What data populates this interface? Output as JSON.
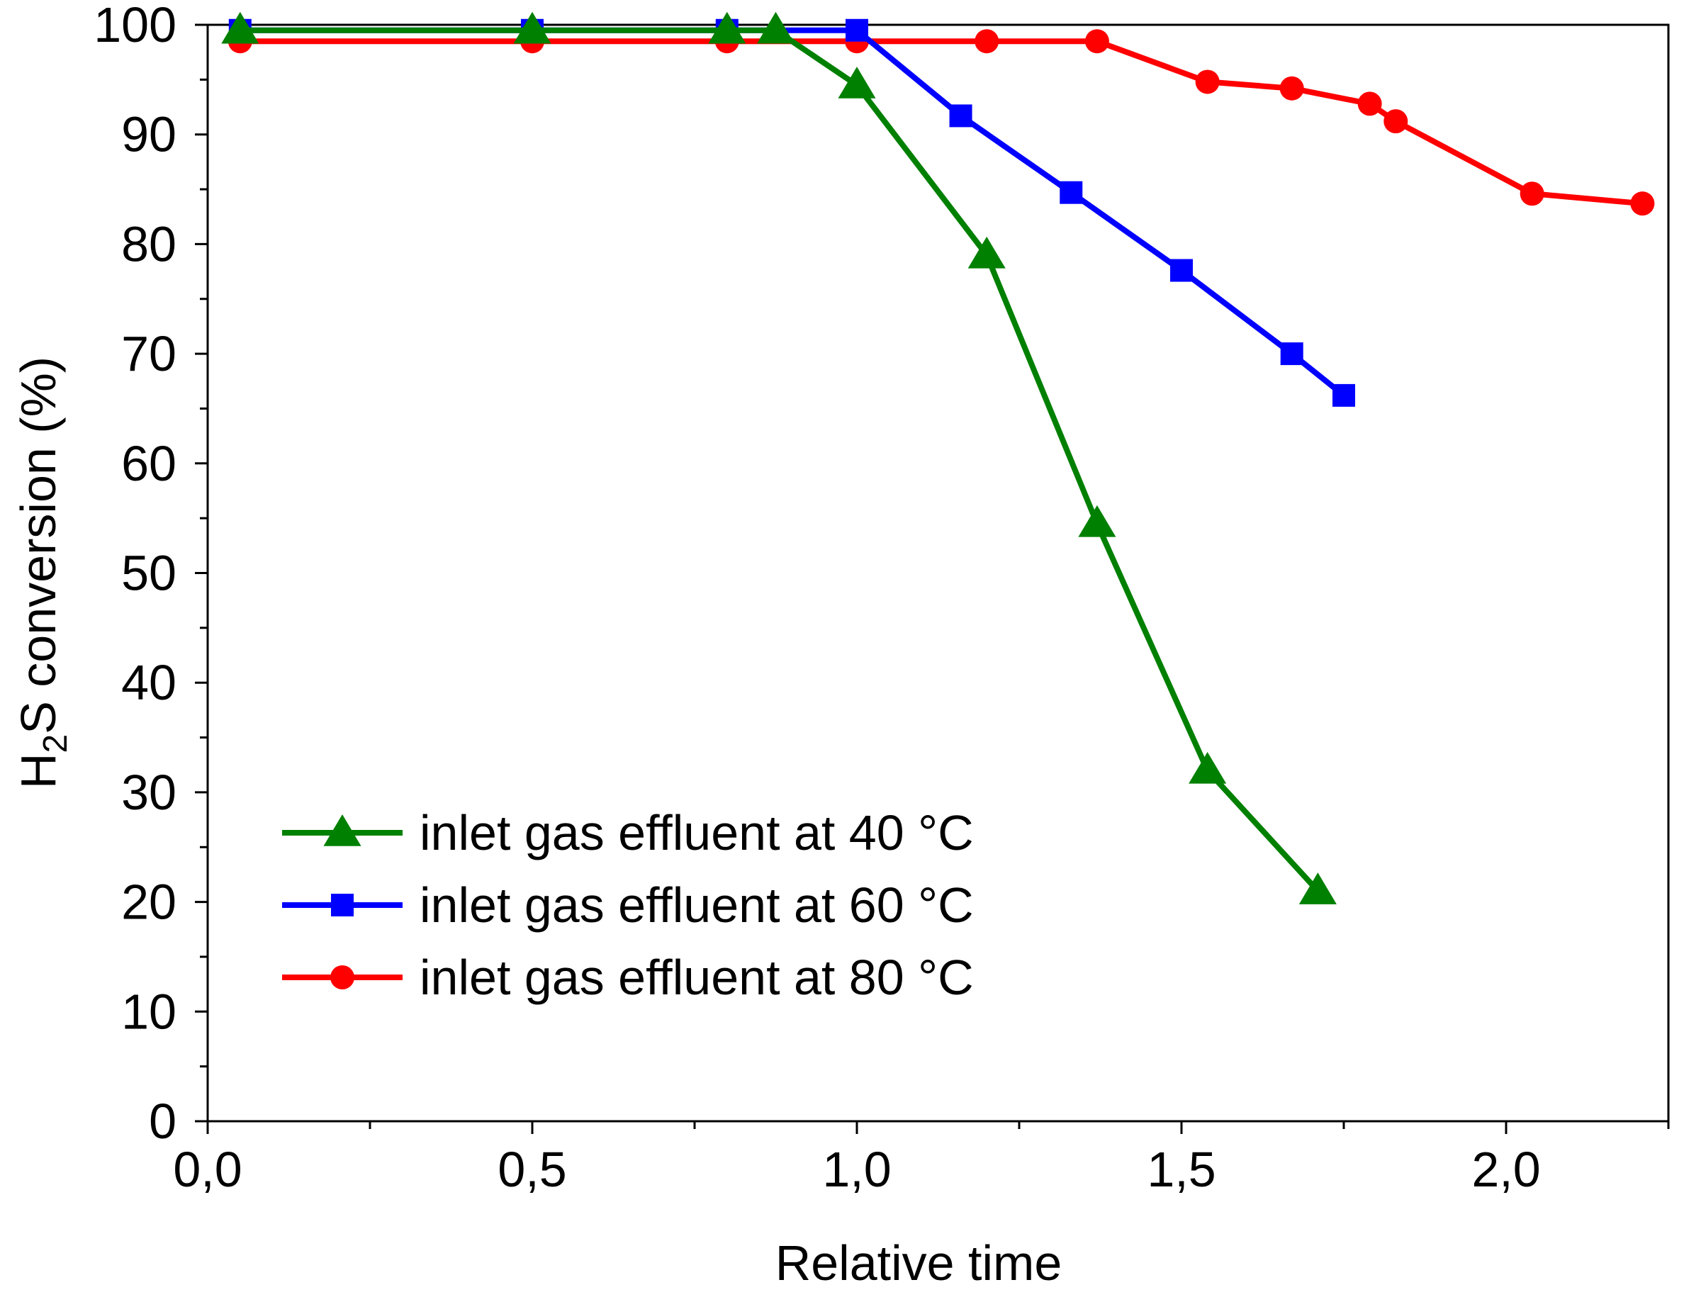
{
  "chart_data": {
    "type": "line",
    "title": "",
    "xlabel": "Relative time",
    "ylabel": {
      "prefix": "H",
      "subscript": "2",
      "suffix": "S conversion (%)"
    },
    "xlim": [
      0.0,
      2.25
    ],
    "ylim": [
      0,
      100
    ],
    "x_ticks": [
      0.0,
      0.5,
      1.0,
      1.5,
      2.0
    ],
    "x_tick_labels": [
      "0,0",
      "0,5",
      "1,0",
      "1,5",
      "2,0"
    ],
    "x_minor_ticks": [
      0.25,
      0.75,
      1.25,
      1.75,
      2.25
    ],
    "y_ticks": [
      0,
      10,
      20,
      30,
      40,
      50,
      60,
      70,
      80,
      90,
      100
    ],
    "y_tick_labels": [
      "0",
      "10",
      "20",
      "30",
      "40",
      "50",
      "60",
      "70",
      "80",
      "90",
      "100"
    ],
    "y_minor_ticks": [
      5,
      15,
      25,
      35,
      45,
      55,
      65,
      75,
      85,
      95
    ],
    "grid": false,
    "legend_position": "bottom-left",
    "series": [
      {
        "name": "inlet gas effluent at 80 °C",
        "color": "#ff0000",
        "marker": "circle",
        "x": [
          0.05,
          0.5,
          0.8,
          1.0,
          1.2,
          1.37,
          1.54,
          1.67,
          1.79,
          1.83,
          2.04,
          2.21
        ],
        "y": [
          98.5,
          98.5,
          98.5,
          98.5,
          98.5,
          98.5,
          94.8,
          94.2,
          92.8,
          91.2,
          84.6,
          83.7
        ]
      },
      {
        "name": "inlet gas effluent at 60 °C",
        "color": "#0000ff",
        "marker": "square",
        "x": [
          0.05,
          0.5,
          0.8,
          1.0,
          1.16,
          1.33,
          1.5,
          1.67,
          1.75
        ],
        "y": [
          99.5,
          99.5,
          99.5,
          99.5,
          91.7,
          84.7,
          77.6,
          70.0,
          66.2
        ]
      },
      {
        "name": "inlet gas effluent at 40 °C",
        "color": "#008000",
        "marker": "triangle",
        "x": [
          0.05,
          0.5,
          0.8,
          0.875,
          1.0,
          1.2,
          1.37,
          1.54,
          1.71
        ],
        "y": [
          99.5,
          99.5,
          99.5,
          99.5,
          94.5,
          79.0,
          54.5,
          32.0,
          21.0
        ]
      }
    ],
    "legend_order": [
      2,
      1,
      0
    ]
  }
}
